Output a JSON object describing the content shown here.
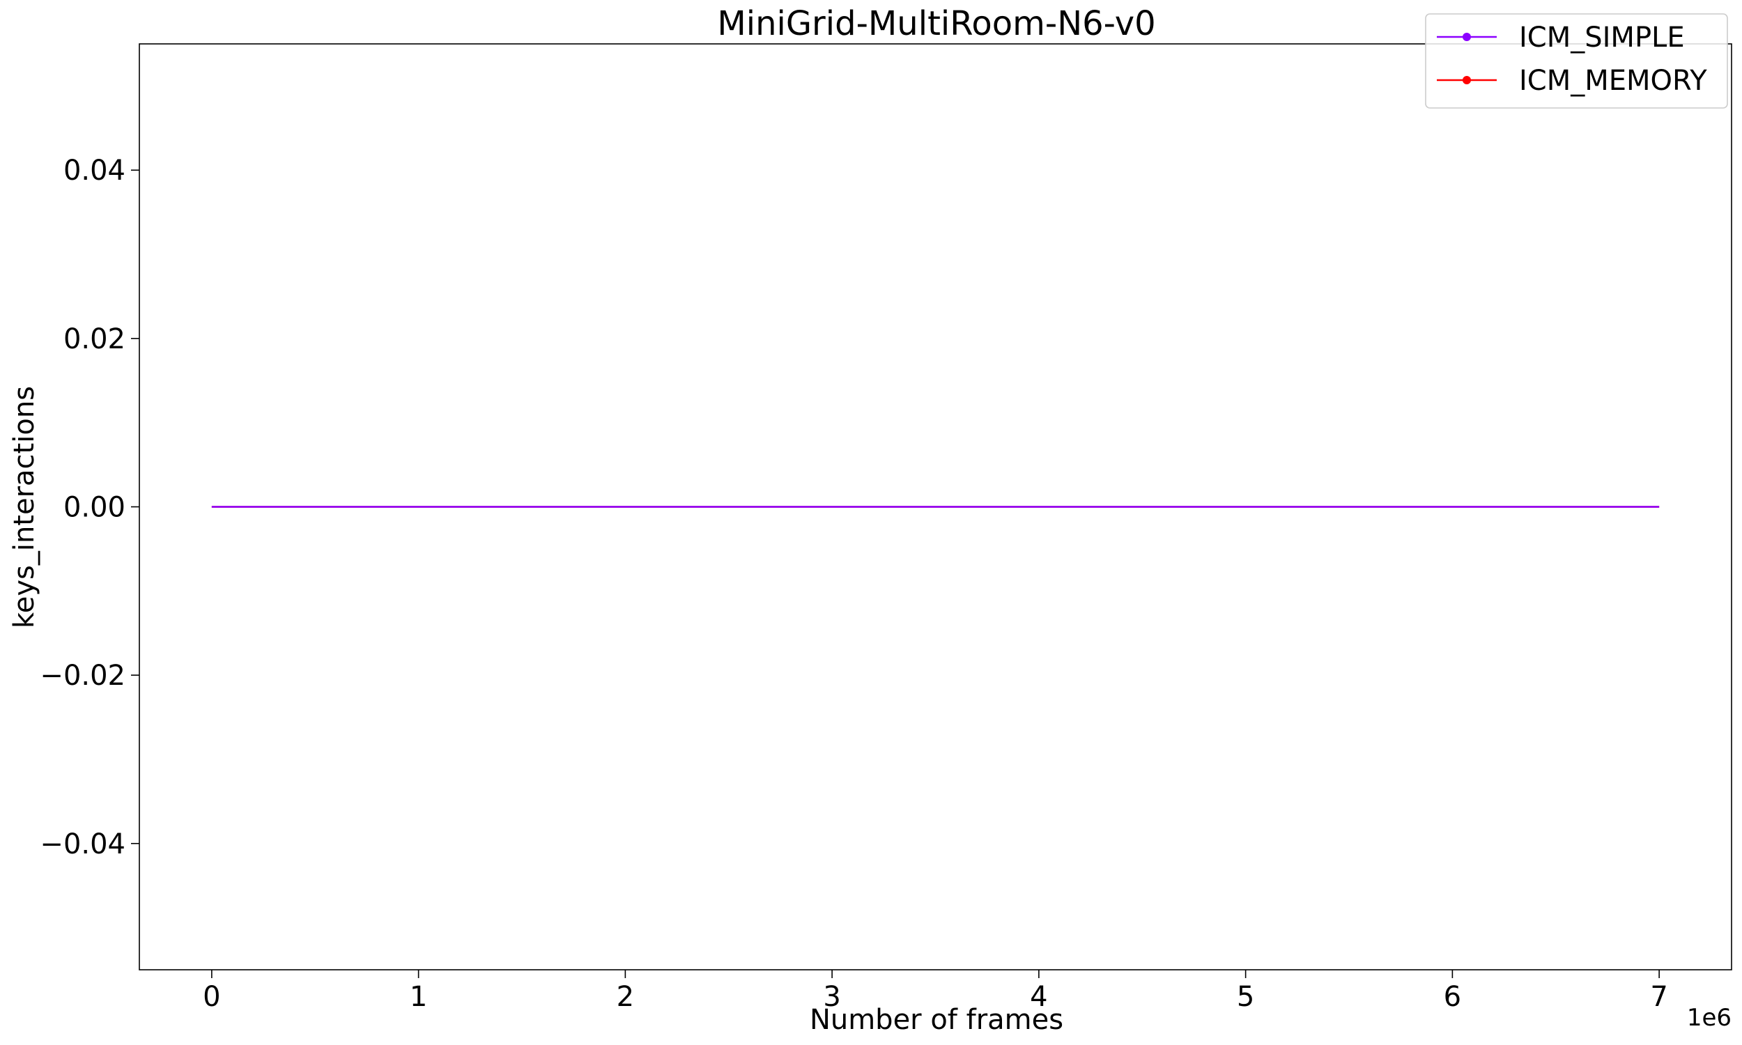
{
  "chart_data": {
    "type": "line",
    "title": "MiniGrid-MultiRoom-N6-v0",
    "xlabel": "Number of frames",
    "ylabel": "keys_interactions",
    "x_offset_label": "1e6",
    "xlim": [
      -0.35,
      7.35
    ],
    "ylim": [
      -0.055,
      0.055
    ],
    "xticks": [
      0,
      1,
      2,
      3,
      4,
      5,
      6,
      7
    ],
    "xtick_labels": [
      "0",
      "1",
      "2",
      "3",
      "4",
      "5",
      "6",
      "7"
    ],
    "yticks": [
      -0.04,
      -0.02,
      0.0,
      0.02,
      0.04
    ],
    "ytick_labels": [
      "−0.04",
      "−0.02",
      "0.00",
      "0.02",
      "0.04"
    ],
    "grid": false,
    "legend_position": "top-right",
    "series": [
      {
        "name": "ICM_SIMPLE",
        "color": "#8b00ff",
        "x": [
          0,
          7
        ],
        "y": [
          0,
          0
        ]
      },
      {
        "name": "ICM_MEMORY",
        "color": "#ff0000",
        "x": [
          0,
          7
        ],
        "y": [
          0,
          0
        ]
      }
    ]
  }
}
